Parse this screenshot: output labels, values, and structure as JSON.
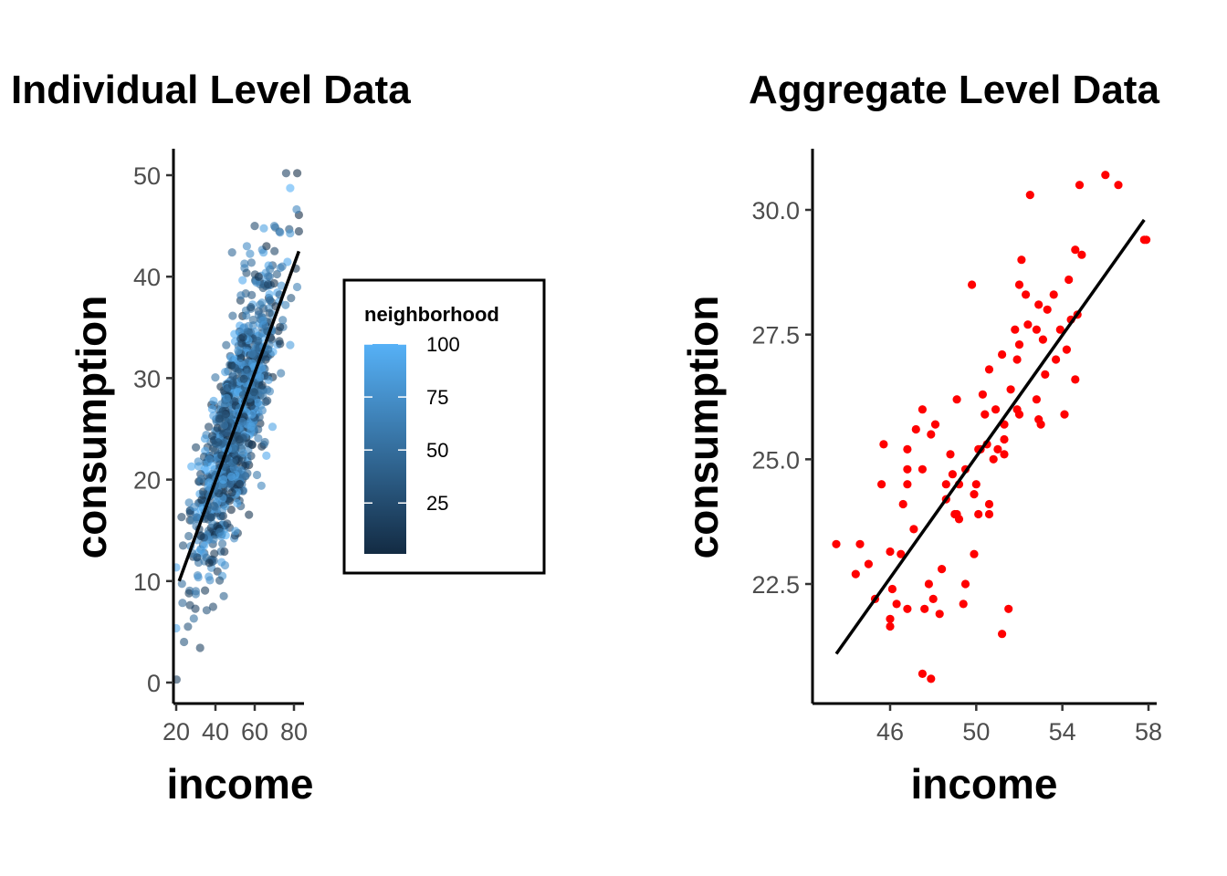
{
  "chart_data": [
    {
      "type": "scatter",
      "title": "Individual Level Data",
      "xlabel": "income",
      "ylabel": "consumption",
      "xlim": [
        19,
        83
      ],
      "ylim": [
        -2,
        52.5
      ],
      "x_ticks": [
        "20",
        "40",
        "60",
        "80"
      ],
      "y_ticks": [
        "0",
        "10",
        "20",
        "30",
        "40",
        "50"
      ],
      "grid": false,
      "points_color_by": "neighborhood",
      "point_opacity": 0.6,
      "points": {
        "description": "approximately 1000 individuals; consumption rises with income; color encodes neighborhood 1-100",
        "n": 1000,
        "income_range": [
          20,
          83
        ],
        "consumption_range": [
          0.3,
          50.2
        ],
        "sample": [
          [
            20.2,
            0.3
          ],
          [
            24,
            4
          ],
          [
            26,
            5.5
          ],
          [
            29,
            6.3
          ],
          [
            26.5,
            8.8
          ],
          [
            30,
            9
          ],
          [
            23.5,
            13.5
          ],
          [
            28,
            16
          ],
          [
            33,
            18
          ],
          [
            37,
            22
          ],
          [
            42,
            26
          ],
          [
            46,
            29
          ],
          [
            50,
            31
          ],
          [
            54,
            34
          ],
          [
            58,
            37
          ],
          [
            62,
            40
          ],
          [
            66,
            43
          ],
          [
            70,
            45
          ],
          [
            74,
            41
          ],
          [
            76,
            50.2
          ],
          [
            81,
            40.8
          ],
          [
            60,
            45
          ],
          [
            56,
            43
          ],
          [
            48,
            32
          ],
          [
            44,
            20
          ]
        ]
      },
      "fit_line": {
        "x": [
          21.5,
          82.5
        ],
        "y": [
          10,
          42.5
        ]
      },
      "legend": {
        "title": "neighborhood",
        "type": "colorbar",
        "breaks": [
          "100",
          "75",
          "50",
          "25"
        ],
        "range": [
          1,
          100
        ],
        "low_color": "#132b43",
        "high_color": "#56b1f7",
        "placement": "right"
      }
    },
    {
      "type": "scatter",
      "title": "Aggregate Level Data",
      "xlabel": "income",
      "ylabel": "consumption",
      "xlim": [
        43.1,
        58.2
      ],
      "ylim": [
        20.25,
        31.2
      ],
      "x_ticks": [
        "46",
        "50",
        "54",
        "58"
      ],
      "y_ticks": [
        "22.5",
        "25.0",
        "27.5",
        "30.0"
      ],
      "grid": false,
      "point_color": "#ff0000",
      "points": [
        [
          43.5,
          23.3
        ],
        [
          44.4,
          22.7
        ],
        [
          44.6,
          23.3
        ],
        [
          45.0,
          22.9
        ],
        [
          45.3,
          22.2
        ],
        [
          45.7,
          25.3
        ],
        [
          45.6,
          24.5
        ],
        [
          46.0,
          21.8
        ],
        [
          46.0,
          21.65
        ],
        [
          46.0,
          23.15
        ],
        [
          46.1,
          22.4
        ],
        [
          46.3,
          22.1
        ],
        [
          46.5,
          23.1
        ],
        [
          46.6,
          24.1
        ],
        [
          46.8,
          24.5
        ],
        [
          46.8,
          24.8
        ],
        [
          46.8,
          25.2
        ],
        [
          46.8,
          22.0
        ],
        [
          47.1,
          23.6
        ],
        [
          47.2,
          25.6
        ],
        [
          47.5,
          26.0
        ],
        [
          47.5,
          24.8
        ],
        [
          47.6,
          22.0
        ],
        [
          47.5,
          20.7
        ],
        [
          47.8,
          22.5
        ],
        [
          47.9,
          25.5
        ],
        [
          48.0,
          22.2
        ],
        [
          47.9,
          20.6
        ],
        [
          48.1,
          25.7
        ],
        [
          48.3,
          21.9
        ],
        [
          48.4,
          22.8
        ],
        [
          48.6,
          24.2
        ],
        [
          48.6,
          24.5
        ],
        [
          48.8,
          25.1
        ],
        [
          48.9,
          24.7
        ],
        [
          49.0,
          23.9
        ],
        [
          49.1,
          26.2
        ],
        [
          49.2,
          24.5
        ],
        [
          49.1,
          23.9
        ],
        [
          49.2,
          23.8
        ],
        [
          49.4,
          22.1
        ],
        [
          49.5,
          22.5
        ],
        [
          49.5,
          24.8
        ],
        [
          49.8,
          28.5
        ],
        [
          49.9,
          23.1
        ],
        [
          49.9,
          24.3
        ],
        [
          50.0,
          24.5
        ],
        [
          50.1,
          23.9
        ],
        [
          50.2,
          25.2
        ],
        [
          50.1,
          25.2
        ],
        [
          50.3,
          26.3
        ],
        [
          50.4,
          25.9
        ],
        [
          50.5,
          25.3
        ],
        [
          50.6,
          23.9
        ],
        [
          50.6,
          24.1
        ],
        [
          50.6,
          26.8
        ],
        [
          50.8,
          25.0
        ],
        [
          50.9,
          26.0
        ],
        [
          51.0,
          25.2
        ],
        [
          51.2,
          27.1
        ],
        [
          51.2,
          21.5
        ],
        [
          51.3,
          25.4
        ],
        [
          51.3,
          25.7
        ],
        [
          51.3,
          25.1
        ],
        [
          51.5,
          22.0
        ],
        [
          51.6,
          26.4
        ],
        [
          51.8,
          27.6
        ],
        [
          51.9,
          27.0
        ],
        [
          51.9,
          26.0
        ],
        [
          52.0,
          28.5
        ],
        [
          52.0,
          25.9
        ],
        [
          52.1,
          29.0
        ],
        [
          52.0,
          27.3
        ],
        [
          52.3,
          28.3
        ],
        [
          52.4,
          27.7
        ],
        [
          52.5,
          30.3
        ],
        [
          52.8,
          26.2
        ],
        [
          52.9,
          28.1
        ],
        [
          52.8,
          27.6
        ],
        [
          52.9,
          25.8
        ],
        [
          53.0,
          25.7
        ],
        [
          53.1,
          27.4
        ],
        [
          53.2,
          26.7
        ],
        [
          53.3,
          28.0
        ],
        [
          53.6,
          28.3
        ],
        [
          53.7,
          27.0
        ],
        [
          53.9,
          27.6
        ],
        [
          54.1,
          25.9
        ],
        [
          54.2,
          27.2
        ],
        [
          54.3,
          28.6
        ],
        [
          54.4,
          27.8
        ],
        [
          54.6,
          29.2
        ],
        [
          54.6,
          26.6
        ],
        [
          54.7,
          27.9
        ],
        [
          54.8,
          30.5
        ],
        [
          54.9,
          29.1
        ],
        [
          56.0,
          30.7
        ],
        [
          56.6,
          30.5
        ],
        [
          57.8,
          29.4
        ],
        [
          57.9,
          29.4
        ]
      ],
      "fit_line": {
        "x": [
          43.5,
          57.8
        ],
        "y": [
          21.1,
          29.8
        ]
      }
    }
  ]
}
